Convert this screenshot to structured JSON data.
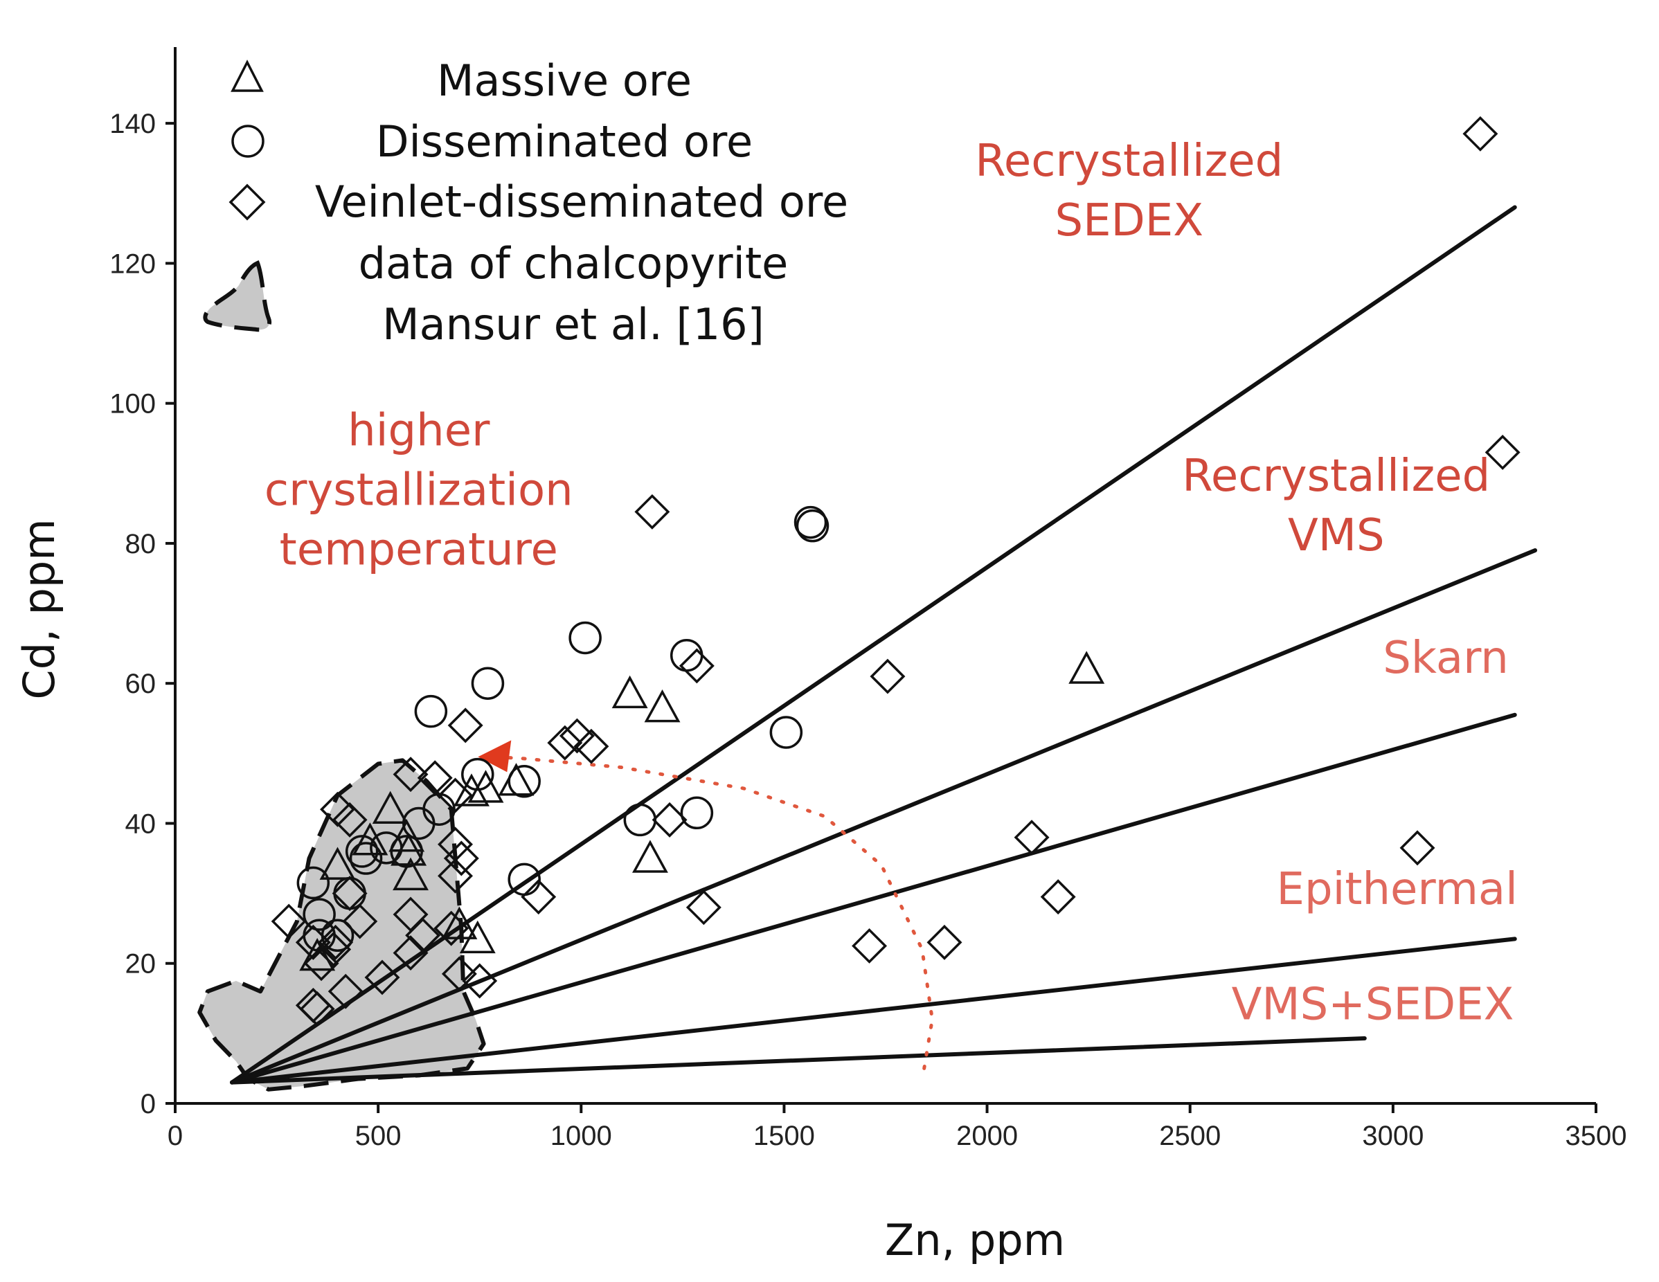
{
  "chart_data": {
    "type": "scatter",
    "xlabel": "Zn, ppm",
    "ylabel": "Cd, ppm",
    "xlim": [
      0,
      3500
    ],
    "ylim": [
      0,
      150
    ],
    "xticks": [
      "0",
      "500",
      "1000",
      "1500",
      "2000",
      "2500",
      "3000",
      "3500"
    ],
    "xtick_values": [
      0,
      500,
      1000,
      1500,
      2000,
      2500,
      3000,
      3500
    ],
    "yticks": [
      "0",
      "20",
      "40",
      "60",
      "80",
      "100",
      "120",
      "140"
    ],
    "ytick_values": [
      0,
      20,
      40,
      60,
      80,
      100,
      120,
      140
    ],
    "legend": [
      {
        "label": "Massive ore",
        "marker": "triangle"
      },
      {
        "label": "Disseminated ore",
        "marker": "circle"
      },
      {
        "label": "Veinlet-disseminated ore",
        "marker": "diamond"
      },
      {
        "label": "data of chalcopyrite",
        "label2": "Mansur et al. [16]",
        "marker": "gray-field"
      }
    ],
    "region_labels": [
      {
        "line1": "Recrystallized",
        "line2": "SEDEX",
        "x": 2350,
        "y1": 132.5,
        "y2": 124
      },
      {
        "line1": "Recrystallized",
        "line2": "VMS",
        "x": 2860,
        "y1": 87.5,
        "y2": 79
      },
      {
        "line1": "Skarn",
        "line2": "",
        "x": 3130,
        "y1": 61.5,
        "y2": 0
      },
      {
        "line1": "Epithermal",
        "line2": "",
        "x": 3010,
        "y1": 28.5,
        "y2": 0
      },
      {
        "line1": "VMS+SEDEX",
        "line2": "",
        "x": 2950,
        "y1": 12,
        "y2": 0
      }
    ],
    "annotation": {
      "line1": "higher",
      "line2": "crystallization",
      "line3": "temperature",
      "x": 600,
      "y1": 94,
      "y2": 85.5,
      "y3": 77
    },
    "boundary_lines": [
      {
        "from": [
          140,
          3
        ],
        "to": [
          3300,
          128
        ]
      },
      {
        "from": [
          140,
          3
        ],
        "to": [
          3350,
          79
        ]
      },
      {
        "from": [
          140,
          3
        ],
        "to": [
          3300,
          55.5
        ]
      },
      {
        "from": [
          140,
          3
        ],
        "to": [
          3300,
          23.5
        ]
      },
      {
        "from": [
          140,
          3
        ],
        "to": [
          2930,
          9.3
        ]
      }
    ],
    "mansur_field": [
      [
        80,
        16
      ],
      [
        150,
        17.5
      ],
      [
        210,
        16
      ],
      [
        300,
        26
      ],
      [
        330,
        35
      ],
      [
        400,
        44
      ],
      [
        500,
        48.5
      ],
      [
        560,
        49
      ],
      [
        620,
        46
      ],
      [
        680,
        42
      ],
      [
        705,
        25
      ],
      [
        710,
        16
      ],
      [
        740,
        12
      ],
      [
        760,
        8.5
      ],
      [
        720,
        5
      ],
      [
        600,
        4
      ],
      [
        450,
        3.5
      ],
      [
        320,
        2.5
      ],
      [
        230,
        2
      ],
      [
        180,
        3.5
      ],
      [
        150,
        6
      ],
      [
        100,
        9
      ],
      [
        60,
        13
      ]
    ],
    "trend_arrow": [
      [
        1845,
        5
      ],
      [
        1865,
        12
      ],
      [
        1840,
        22
      ],
      [
        1740,
        34
      ],
      [
        1600,
        41
      ],
      [
        1400,
        45
      ],
      [
        1100,
        48
      ],
      [
        850,
        49.3
      ],
      [
        780,
        49.5
      ]
    ],
    "series": [
      {
        "name": "Massive ore",
        "marker": "triangle",
        "points": [
          [
            1120,
            58.5
          ],
          [
            1200,
            56.5
          ],
          [
            1170,
            35
          ],
          [
            2245,
            62
          ],
          [
            730,
            44.5
          ],
          [
            765,
            45
          ],
          [
            840,
            46
          ],
          [
            530,
            42
          ],
          [
            575,
            36
          ],
          [
            580,
            32.5
          ],
          [
            570,
            38
          ],
          [
            400,
            34
          ],
          [
            700,
            25.5
          ],
          [
            745,
            23.5
          ],
          [
            350,
            21
          ],
          [
            480,
            37.5
          ]
        ]
      },
      {
        "name": "Disseminated ore",
        "marker": "circle",
        "points": [
          [
            1010,
            66.5
          ],
          [
            1565,
            83
          ],
          [
            1570,
            82.5
          ],
          [
            1260,
            64
          ],
          [
            770,
            60
          ],
          [
            630,
            56
          ],
          [
            1505,
            53
          ],
          [
            745,
            47
          ],
          [
            860,
            46
          ],
          [
            1145,
            40.5
          ],
          [
            1285,
            41.5
          ],
          [
            860,
            32
          ],
          [
            340,
            31.5
          ],
          [
            355,
            27
          ],
          [
            355,
            24
          ],
          [
            460,
            36
          ],
          [
            470,
            35
          ],
          [
            430,
            30
          ],
          [
            520,
            36.5
          ],
          [
            600,
            40
          ],
          [
            570,
            36
          ],
          [
            400,
            24
          ],
          [
            650,
            42
          ]
        ]
      },
      {
        "name": "Veinlet-disseminated ore",
        "marker": "diamond",
        "points": [
          [
            3215,
            138.5
          ],
          [
            3270,
            93
          ],
          [
            1175,
            84.5
          ],
          [
            1755,
            61
          ],
          [
            1285,
            62.5
          ],
          [
            715,
            54
          ],
          [
            960,
            51.5
          ],
          [
            990,
            52.5
          ],
          [
            1025,
            51
          ],
          [
            1218,
            40.5
          ],
          [
            1302,
            28
          ],
          [
            2110,
            38
          ],
          [
            2175,
            29.5
          ],
          [
            3060,
            36.5
          ],
          [
            1710,
            22.5
          ],
          [
            1895,
            23
          ],
          [
            895,
            29.5
          ],
          [
            640,
            46.5
          ],
          [
            580,
            47
          ],
          [
            690,
            44
          ],
          [
            400,
            42
          ],
          [
            430,
            40.5
          ],
          [
            690,
            37
          ],
          [
            705,
            35
          ],
          [
            690,
            32.5
          ],
          [
            580,
            27
          ],
          [
            680,
            25
          ],
          [
            280,
            26
          ],
          [
            340,
            23
          ],
          [
            390,
            22
          ],
          [
            430,
            30
          ],
          [
            420,
            16
          ],
          [
            510,
            18
          ],
          [
            580,
            21.5
          ],
          [
            610,
            24
          ],
          [
            700,
            18.5
          ],
          [
            750,
            17.5
          ],
          [
            340,
            14
          ],
          [
            350,
            13.5
          ],
          [
            395,
            23
          ],
          [
            455,
            26
          ],
          [
            360,
            20
          ]
        ]
      }
    ]
  }
}
